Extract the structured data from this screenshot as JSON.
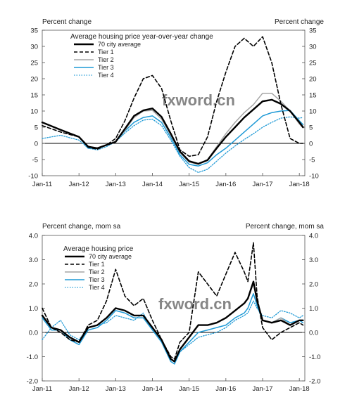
{
  "chart_data": [
    {
      "type": "line",
      "title": "",
      "left_axis_label": "Percent change",
      "right_axis_label": "Percent change",
      "legend_title": "Average housing price year-over-year change",
      "legend_position": "top-left",
      "watermark": "fxword.cn",
      "x_ticks": [
        "Jan-11",
        "Jan-12",
        "Jan-13",
        "Jan-14",
        "Jan-15",
        "Jan-16",
        "Jan-17",
        "Jan-18"
      ],
      "y_ticks": [
        35,
        30,
        25,
        20,
        15,
        10,
        5,
        0,
        -5,
        -10
      ],
      "ylim": [
        -10,
        35
      ],
      "xlim": [
        2011.0,
        2018.15
      ],
      "zero_line": true,
      "grid": false,
      "colors": {
        "70 city average": "#000000",
        "Tier 1": "#000000",
        "Tier 2": "#a6a6a6",
        "Tier 3": "#1f9ad6",
        "Tier 4": "#1f9ad6"
      },
      "x": [
        2011.0,
        2011.5,
        2012.0,
        2012.25,
        2012.5,
        2012.75,
        2013.0,
        2013.25,
        2013.5,
        2013.75,
        2014.0,
        2014.25,
        2014.5,
        2014.75,
        2015.0,
        2015.25,
        2015.5,
        2015.75,
        2016.0,
        2016.25,
        2016.5,
        2016.75,
        2017.0,
        2017.25,
        2017.5,
        2017.75,
        2018.0,
        2018.1
      ],
      "series": [
        {
          "name": "70 city average",
          "style": "solid-thick",
          "values": [
            6.5,
            4.2,
            2.0,
            -1.0,
            -1.5,
            -0.5,
            0.5,
            4.5,
            8.5,
            10.2,
            10.8,
            8.2,
            3.0,
            -2.5,
            -5.5,
            -6.3,
            -5.2,
            -1.5,
            2.0,
            5.0,
            8.0,
            10.5,
            13.0,
            13.5,
            12.2,
            10.0,
            6.5,
            5.0
          ]
        },
        {
          "name": "Tier 1",
          "style": "dashed",
          "values": [
            5.5,
            3.5,
            2.0,
            -1.2,
            -1.8,
            -0.5,
            1.5,
            7.0,
            14.0,
            20.0,
            21.0,
            17.0,
            7.0,
            -2.0,
            -4.0,
            -3.5,
            2.0,
            13.0,
            22.0,
            30.0,
            32.5,
            30.0,
            33.0,
            25.0,
            12.0,
            1.5,
            0.0,
            0.0
          ]
        },
        {
          "name": "Tier 2",
          "style": "solid",
          "values": [
            6.5,
            4.0,
            2.0,
            -1.0,
            -1.5,
            -0.5,
            0.5,
            4.0,
            8.0,
            10.0,
            10.2,
            7.5,
            2.5,
            -2.8,
            -5.8,
            -6.5,
            -5.0,
            -1.0,
            3.0,
            6.5,
            9.5,
            12.0,
            15.5,
            15.5,
            13.0,
            10.0,
            6.0,
            4.8
          ]
        },
        {
          "name": "Tier 3",
          "style": "solid",
          "values": [
            6.5,
            4.2,
            2.0,
            -1.5,
            -1.5,
            -0.5,
            0.5,
            3.8,
            6.5,
            8.0,
            8.5,
            6.5,
            1.8,
            -3.5,
            -6.5,
            -7.0,
            -6.0,
            -3.5,
            -1.5,
            1.0,
            3.5,
            6.0,
            8.5,
            9.5,
            10.0,
            10.2,
            7.0,
            5.8
          ]
        },
        {
          "name": "Tier 4",
          "style": "dotted",
          "values": [
            1.5,
            2.5,
            1.0,
            -1.5,
            -2.0,
            -1.0,
            0.5,
            3.2,
            5.5,
            7.2,
            7.5,
            5.5,
            1.0,
            -4.0,
            -7.5,
            -9.0,
            -8.0,
            -5.5,
            -3.0,
            -0.8,
            1.2,
            3.0,
            5.0,
            6.5,
            7.8,
            8.2,
            7.8,
            8.0
          ]
        }
      ]
    },
    {
      "type": "line",
      "title": "",
      "left_axis_label": "Percent change, mom sa",
      "right_axis_label": "Percent change, mom sa",
      "legend_title": "Average housing price",
      "legend_position": "top-left",
      "watermark": "fxword.cn",
      "x_ticks": [
        "Jan-11",
        "Jan-12",
        "Jan-13",
        "Jan-14",
        "Jan-15",
        "Jan-16",
        "Jan-17",
        "Jan-18"
      ],
      "y_ticks": [
        "4.0",
        "3.0",
        "2.0",
        "1.0",
        "0.0",
        "-1.0",
        "-2.0"
      ],
      "ylim": [
        -2.0,
        4.0
      ],
      "xlim": [
        2011.0,
        2018.15
      ],
      "zero_line": true,
      "grid": false,
      "colors": {
        "70 city average": "#000000",
        "Tier 1": "#000000",
        "Tier 2": "#a6a6a6",
        "Tier 3": "#1f9ad6",
        "Tier 4": "#1f9ad6"
      },
      "x": [
        2011.0,
        2011.25,
        2011.5,
        2011.75,
        2012.0,
        2012.25,
        2012.5,
        2012.75,
        2013.0,
        2013.25,
        2013.5,
        2013.75,
        2014.0,
        2014.25,
        2014.5,
        2014.6,
        2014.75,
        2015.0,
        2015.25,
        2015.5,
        2015.75,
        2016.0,
        2016.25,
        2016.5,
        2016.6,
        2016.75,
        2016.85,
        2017.0,
        2017.25,
        2017.5,
        2017.75,
        2018.0,
        2018.1
      ],
      "series": [
        {
          "name": "70 city average",
          "style": "solid-thick",
          "values": [
            0.7,
            0.2,
            0.1,
            -0.2,
            -0.4,
            0.2,
            0.3,
            0.6,
            1.0,
            0.9,
            0.7,
            0.7,
            0.2,
            -0.3,
            -1.1,
            -1.2,
            -0.7,
            -0.2,
            0.3,
            0.3,
            0.4,
            0.6,
            0.9,
            1.2,
            1.4,
            2.1,
            1.3,
            0.5,
            0.4,
            0.5,
            0.3,
            0.5,
            0.5
          ]
        },
        {
          "name": "Tier 1",
          "style": "dashed",
          "values": [
            1.0,
            0.2,
            0.0,
            -0.3,
            -0.4,
            0.3,
            0.5,
            1.3,
            2.6,
            1.5,
            1.1,
            1.4,
            0.5,
            -0.3,
            -1.0,
            -1.1,
            -0.4,
            0.0,
            2.5,
            2.0,
            1.5,
            2.4,
            3.3,
            2.5,
            2.1,
            3.7,
            1.5,
            0.2,
            -0.3,
            0.0,
            0.2,
            0.4,
            0.3
          ]
        },
        {
          "name": "Tier 2",
          "style": "solid",
          "values": [
            0.7,
            0.2,
            0.1,
            -0.2,
            -0.4,
            0.2,
            0.3,
            0.6,
            1.0,
            0.9,
            0.7,
            0.7,
            0.2,
            -0.3,
            -1.1,
            -1.2,
            -0.7,
            -0.2,
            0.3,
            0.3,
            0.4,
            0.6,
            0.9,
            1.2,
            1.4,
            2.0,
            1.3,
            0.5,
            0.4,
            0.6,
            0.3,
            0.5,
            0.5
          ]
        },
        {
          "name": "Tier 3",
          "style": "solid",
          "values": [
            0.6,
            0.1,
            0.1,
            -0.3,
            -0.5,
            0.1,
            0.2,
            0.5,
            0.9,
            0.8,
            0.6,
            0.6,
            0.1,
            -0.4,
            -1.2,
            -1.3,
            -0.8,
            -0.4,
            0.0,
            0.1,
            0.2,
            0.3,
            0.6,
            0.8,
            1.0,
            1.6,
            1.1,
            0.5,
            0.4,
            0.6,
            0.4,
            0.5,
            0.4
          ]
        },
        {
          "name": "Tier 4",
          "style": "dotted",
          "values": [
            -0.3,
            0.2,
            0.5,
            -0.1,
            -0.3,
            0.2,
            0.3,
            0.4,
            0.7,
            0.6,
            0.5,
            0.8,
            0.1,
            -0.4,
            -1.1,
            -1.2,
            -0.8,
            -0.5,
            -0.2,
            -0.1,
            0.0,
            0.2,
            0.5,
            0.7,
            0.8,
            1.3,
            1.0,
            0.7,
            0.6,
            0.9,
            0.8,
            0.6,
            0.7
          ]
        }
      ]
    }
  ]
}
